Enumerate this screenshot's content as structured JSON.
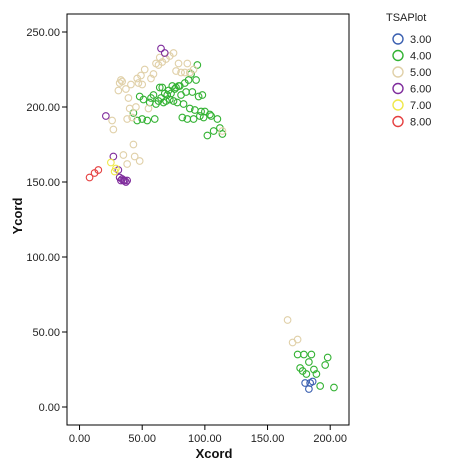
{
  "chart_data": {
    "type": "scatter",
    "title": "",
    "xlabel": "Xcord",
    "ylabel": "Ycord",
    "xlim": [
      -10,
      215
    ],
    "ylim": [
      -12,
      262
    ],
    "xticks": [
      0,
      50,
      100,
      150,
      200
    ],
    "yticks": [
      0,
      50,
      100,
      150,
      200,
      250
    ],
    "xtick_labels": [
      "0.00",
      "50.00",
      "100.00",
      "150.00",
      "200.00"
    ],
    "ytick_labels": [
      "0.00",
      "50.00",
      "100.00",
      "150.00",
      "200.00",
      "250.00"
    ],
    "grid": false,
    "legend_title": "TSAPlot",
    "legend_position": "right",
    "series": [
      {
        "name": "3.00",
        "color": "#3a5fb0",
        "points": [
          [
            180,
            16
          ],
          [
            183,
            12
          ],
          [
            184,
            16
          ],
          [
            186,
            17
          ]
        ]
      },
      {
        "name": "4.00",
        "color": "#33b233",
        "points": [
          [
            43,
            196
          ],
          [
            46,
            191
          ],
          [
            48,
            207
          ],
          [
            50,
            192
          ],
          [
            51,
            205
          ],
          [
            54,
            191
          ],
          [
            56,
            203
          ],
          [
            57,
            206
          ],
          [
            59,
            208
          ],
          [
            60,
            192
          ],
          [
            61,
            202
          ],
          [
            63,
            204
          ],
          [
            64,
            213
          ],
          [
            65,
            206
          ],
          [
            66,
            213
          ],
          [
            67,
            203
          ],
          [
            68,
            209
          ],
          [
            69,
            204
          ],
          [
            70,
            208
          ],
          [
            71,
            211
          ],
          [
            72,
            205
          ],
          [
            73,
            209
          ],
          [
            74,
            214
          ],
          [
            75,
            204
          ],
          [
            76,
            212
          ],
          [
            77,
            213
          ],
          [
            78,
            203
          ],
          [
            79,
            214
          ],
          [
            80,
            214
          ],
          [
            81,
            208
          ],
          [
            82,
            193
          ],
          [
            83,
            202
          ],
          [
            84,
            216
          ],
          [
            85,
            210
          ],
          [
            86,
            192
          ],
          [
            87,
            218
          ],
          [
            88,
            199
          ],
          [
            89,
            222
          ],
          [
            90,
            210
          ],
          [
            91,
            192
          ],
          [
            92,
            198
          ],
          [
            93,
            218
          ],
          [
            94,
            228
          ],
          [
            95,
            207
          ],
          [
            96,
            194
          ],
          [
            97,
            197
          ],
          [
            98,
            208
          ],
          [
            99,
            193
          ],
          [
            100,
            197
          ],
          [
            102,
            181
          ],
          [
            104,
            195
          ],
          [
            105,
            194
          ],
          [
            107,
            184
          ],
          [
            110,
            192
          ],
          [
            112,
            186
          ],
          [
            114,
            182
          ],
          [
            174,
            35
          ],
          [
            176,
            26
          ],
          [
            178,
            24
          ],
          [
            179,
            35
          ],
          [
            181,
            22
          ],
          [
            183,
            30
          ],
          [
            185,
            35
          ],
          [
            187,
            25
          ],
          [
            189,
            22
          ],
          [
            192,
            14
          ],
          [
            196,
            28
          ],
          [
            198,
            33
          ],
          [
            203,
            13
          ]
        ]
      },
      {
        "name": "5.00",
        "color": "#e0d0a8",
        "points": [
          [
            26,
            191
          ],
          [
            27,
            185
          ],
          [
            31,
            211
          ],
          [
            32,
            216
          ],
          [
            33,
            218
          ],
          [
            34,
            217
          ],
          [
            37,
            212
          ],
          [
            38,
            192
          ],
          [
            39,
            206
          ],
          [
            40,
            199
          ],
          [
            41,
            215
          ],
          [
            42,
            193
          ],
          [
            43,
            175
          ],
          [
            44,
            167
          ],
          [
            45,
            200
          ],
          [
            46,
            219
          ],
          [
            47,
            216
          ],
          [
            48,
            164
          ],
          [
            49,
            221
          ],
          [
            50,
            215
          ],
          [
            52,
            225
          ],
          [
            55,
            199
          ],
          [
            57,
            219
          ],
          [
            59,
            222
          ],
          [
            61,
            229
          ],
          [
            63,
            228
          ],
          [
            64,
            233
          ],
          [
            66,
            230
          ],
          [
            69,
            232
          ],
          [
            72,
            234
          ],
          [
            75,
            236
          ],
          [
            77,
            224
          ],
          [
            79,
            229
          ],
          [
            81,
            223
          ],
          [
            84,
            223
          ],
          [
            86,
            229
          ],
          [
            88,
            223
          ],
          [
            91,
            225
          ],
          [
            114,
            184
          ],
          [
            38,
            162
          ],
          [
            35,
            168
          ],
          [
            166,
            58
          ],
          [
            170,
            43
          ],
          [
            174,
            45
          ]
        ]
      },
      {
        "name": "6.00",
        "color": "#7f2c9c",
        "points": [
          [
            21,
            194
          ],
          [
            27,
            167
          ],
          [
            31,
            158
          ],
          [
            32,
            153
          ],
          [
            33,
            151
          ],
          [
            34,
            152
          ],
          [
            35,
            151
          ],
          [
            36,
            151
          ],
          [
            37,
            150
          ],
          [
            38,
            151
          ],
          [
            65,
            239
          ],
          [
            68,
            236
          ]
        ]
      },
      {
        "name": "7.00",
        "color": "#efe84a",
        "points": [
          [
            25,
            163
          ],
          [
            28,
            157
          ],
          [
            29,
            159
          ]
        ]
      },
      {
        "name": "8.00",
        "color": "#e54040",
        "points": [
          [
            8,
            153
          ],
          [
            12,
            156
          ],
          [
            15,
            158
          ]
        ]
      }
    ]
  }
}
